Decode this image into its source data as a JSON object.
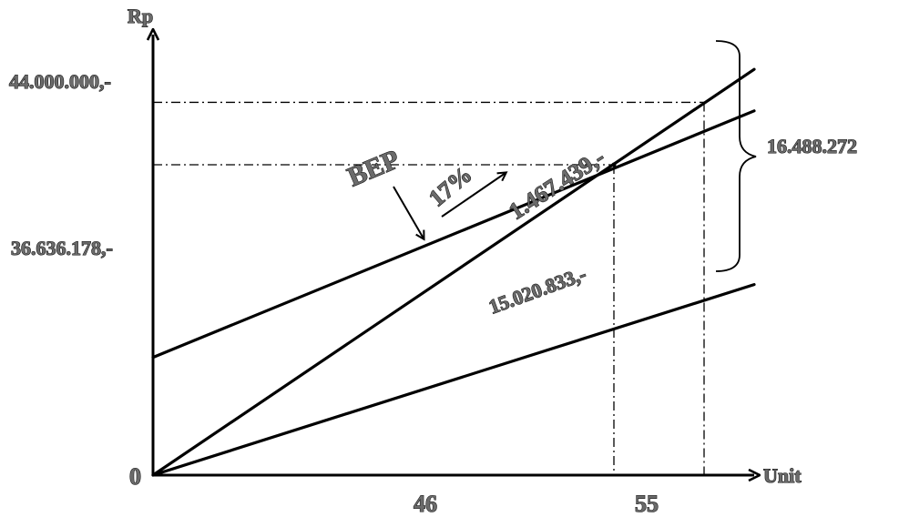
{
  "chart_data": {
    "type": "line",
    "xlabel": "Unit",
    "ylabel": "Rp",
    "origin_label": "0",
    "xlim": [
      0,
      60
    ],
    "ylim": [
      0,
      52000000
    ],
    "x_tick_labels": [
      "46",
      "55"
    ],
    "y_tick_labels": [
      "44.000.000,-",
      "36.636.178,-"
    ],
    "series": [
      {
        "x": [
          0,
          60
        ],
        "y": [
          0,
          47900000
        ]
      },
      {
        "x": [
          0,
          60
        ],
        "y": [
          13900000,
          43000000
        ]
      },
      {
        "x": [
          0,
          60
        ],
        "y": [
          0,
          22500000
        ]
      }
    ],
    "bep": {
      "x": 46,
      "y": 36636178
    },
    "guides": [
      {
        "x": 46,
        "y": 36636178
      },
      {
        "x": 55,
        "y": 44000000
      }
    ],
    "annotations": {
      "bep_label": "BEP",
      "margin_percent": "17%",
      "margin_value": "1.467.439,-",
      "variable_cost_value": "15.020.833,-",
      "brace_value": "16.488.272"
    },
    "grid": false
  }
}
